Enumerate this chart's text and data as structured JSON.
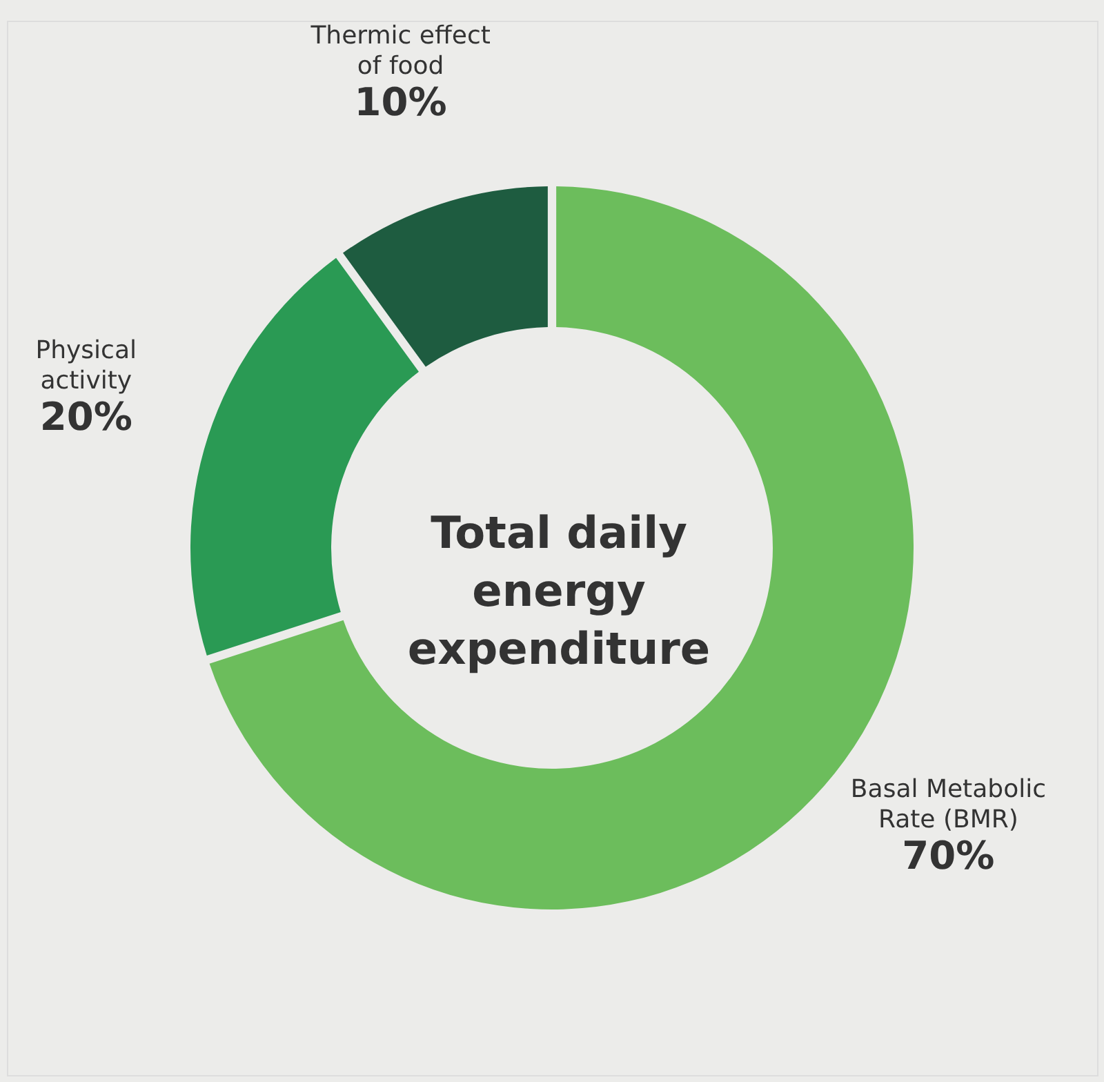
{
  "chart_data": {
    "type": "donut",
    "title": "Total daily energy expenditure",
    "categories": [
      "Basal Metabolic Rate (BMR)",
      "Physical activity",
      "Thermic effect of food"
    ],
    "values": [
      70,
      20,
      10
    ],
    "colors": [
      "#6cbd5c",
      "#2a9a54",
      "#1e5c40"
    ],
    "value_labels": [
      "70%",
      "20%",
      "10%"
    ],
    "legend": false
  }
}
